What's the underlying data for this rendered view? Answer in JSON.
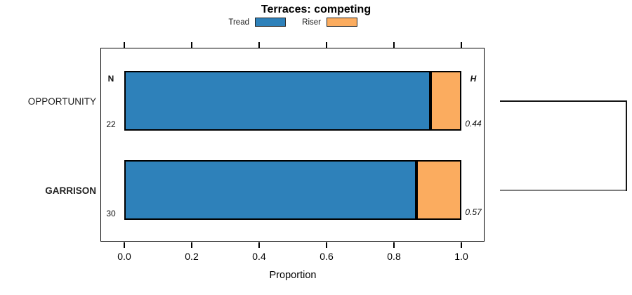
{
  "title": "Terraces: competing",
  "legend": {
    "items": [
      {
        "label": "Tread",
        "color": "#2E81BA"
      },
      {
        "label": "Riser",
        "color": "#FBAC5F"
      }
    ]
  },
  "x_axis": {
    "label": "Proportion",
    "tick_labels": [
      "0.0",
      "0.2",
      "0.4",
      "0.6",
      "0.8",
      "1.0"
    ]
  },
  "annotation_columns": {
    "left_header": "N",
    "right_header": "H"
  },
  "chart_data": {
    "type": "bar",
    "orientation": "horizontal",
    "stacked": true,
    "title": "Terraces: competing",
    "xlabel": "Proportion",
    "xlim": [
      0.0,
      1.0
    ],
    "x_ticks": [
      0.0,
      0.2,
      0.4,
      0.6,
      0.8,
      1.0
    ],
    "grid": false,
    "legend_position": "top",
    "categories": [
      "OPPORTUNITY",
      "GARRISON"
    ],
    "series": [
      {
        "name": "Tread",
        "color": "#2E81BA",
        "values": [
          0.909,
          0.867
        ]
      },
      {
        "name": "Riser",
        "color": "#FBAC5F",
        "values": [
          0.091,
          0.133
        ]
      }
    ],
    "rows": [
      {
        "label": "OPPORTUNITY",
        "bold": false,
        "n": "22",
        "h": "0.44",
        "tread": 0.909,
        "riser": 0.091
      },
      {
        "label": "GARRISON",
        "bold": true,
        "n": "30",
        "h": "0.57",
        "tread": 0.867,
        "riser": 0.133
      }
    ],
    "annotations": {
      "n_header": "N",
      "h_header": "H",
      "dendrogram_joins_rows": [
        0,
        1
      ]
    }
  }
}
